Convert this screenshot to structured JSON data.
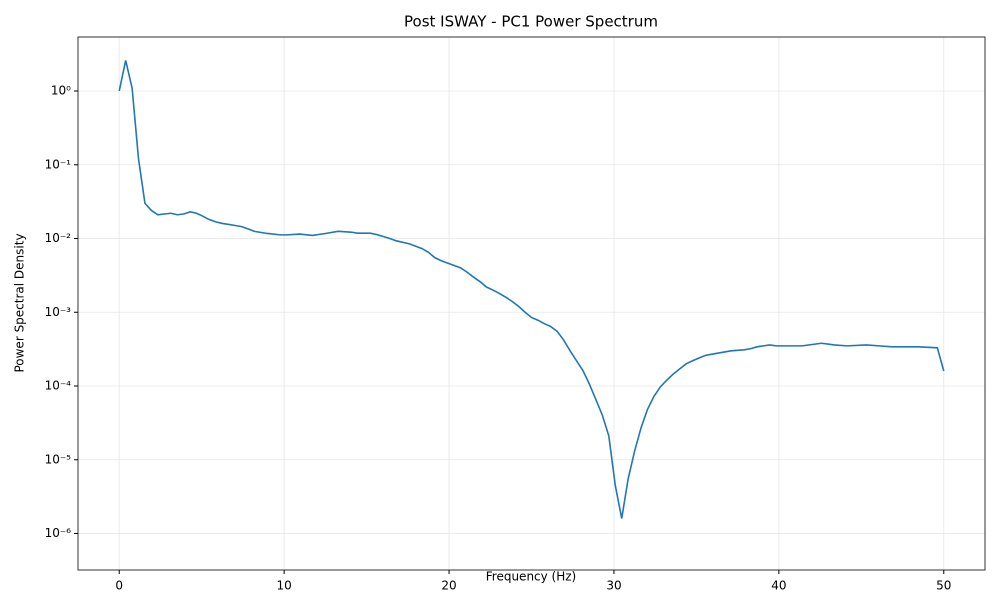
{
  "chart_data": {
    "type": "line",
    "title": "Post ISWAY - PC1 Power Spectrum",
    "x_label": "Frequency (Hz)",
    "y_label": "Power Spectral Density",
    "log_y": true,
    "grid": true,
    "xlim": [
      -2.5,
      52.5
    ],
    "xticks": [
      0,
      10,
      20,
      30,
      40,
      50
    ],
    "ylim": [
      3.2e-07,
      5.4
    ],
    "yticks": [
      {
        "value": 1e-06,
        "label": "10⁻⁶"
      },
      {
        "value": 1e-05,
        "label": "10⁻⁵"
      },
      {
        "value": 0.0001,
        "label": "10⁻⁴"
      },
      {
        "value": 0.001,
        "label": "10⁻³"
      },
      {
        "value": 0.01,
        "label": "10⁻²"
      },
      {
        "value": 0.1,
        "label": "10⁻¹"
      },
      {
        "value": 1,
        "label": "10⁰"
      }
    ],
    "series": [
      {
        "color": "#1f77b4",
        "x": [
          0,
          0.39,
          0.78,
          1.17,
          1.56,
          1.95,
          2.34,
          2.73,
          3.13,
          3.52,
          3.91,
          4.3,
          4.69,
          5.08,
          5.47,
          5.86,
          6.25,
          6.64,
          7.03,
          7.42,
          7.81,
          8.2,
          8.98,
          9.77,
          10.16,
          10.94,
          11.72,
          12.5,
          13.28,
          14.06,
          14.45,
          15.23,
          15.63,
          16.41,
          16.8,
          17.58,
          18.36,
          18.75,
          19.14,
          19.53,
          20.31,
          20.7,
          21.09,
          21.48,
          21.88,
          22.27,
          22.66,
          23.05,
          23.44,
          23.83,
          24.22,
          24.61,
          25.0,
          25.39,
          25.78,
          26.17,
          26.56,
          26.95,
          27.34,
          27.73,
          28.13,
          28.52,
          28.91,
          29.3,
          29.69,
          30.08,
          30.47,
          30.86,
          31.25,
          31.64,
          32.03,
          32.42,
          32.81,
          33.2,
          33.59,
          33.98,
          34.38,
          34.77,
          35.16,
          35.55,
          35.94,
          36.33,
          36.72,
          37.11,
          37.89,
          38.28,
          38.67,
          39.06,
          39.45,
          39.84,
          40.23,
          41.02,
          41.41,
          41.8,
          42.58,
          42.97,
          43.36,
          44.14,
          45.31,
          46.09,
          46.88,
          47.66,
          48.44,
          49.61,
          50
        ],
        "values": [
          1.0,
          2.6,
          1.1,
          0.12,
          0.03,
          0.024,
          0.021,
          0.0215,
          0.022,
          0.021,
          0.0215,
          0.023,
          0.022,
          0.02,
          0.018,
          0.0168,
          0.016,
          0.0155,
          0.015,
          0.0145,
          0.0135,
          0.0125,
          0.0117,
          0.0112,
          0.0112,
          0.0115,
          0.011,
          0.0117,
          0.0125,
          0.0122,
          0.0118,
          0.0118,
          0.0113,
          0.01,
          0.0093,
          0.0085,
          0.0073,
          0.0065,
          0.0055,
          0.005,
          0.0043,
          0.004,
          0.0035,
          0.003,
          0.0026,
          0.0022,
          0.002,
          0.0018,
          0.0016,
          0.0014,
          0.0012,
          0.001,
          0.00085,
          0.00078,
          0.0007,
          0.00064,
          0.00055,
          0.00042,
          0.0003,
          0.00022,
          0.00016,
          0.000105,
          6.5e-05,
          4e-05,
          2.1e-05,
          4.5e-06,
          1.6e-06,
          5.5e-06,
          1.3e-05,
          2.7e-05,
          4.8e-05,
          7.2e-05,
          9.7e-05,
          0.00012,
          0.000145,
          0.00017,
          0.0002,
          0.00022,
          0.00024,
          0.00026,
          0.00027,
          0.00028,
          0.00029,
          0.0003,
          0.00031,
          0.00032,
          0.00034,
          0.00035,
          0.00036,
          0.00035,
          0.00035,
          0.00035,
          0.00035,
          0.00036,
          0.00038,
          0.00037,
          0.00036,
          0.00035,
          0.00036,
          0.00035,
          0.00034,
          0.00034,
          0.00034,
          0.00033,
          0.00016
        ]
      }
    ]
  }
}
